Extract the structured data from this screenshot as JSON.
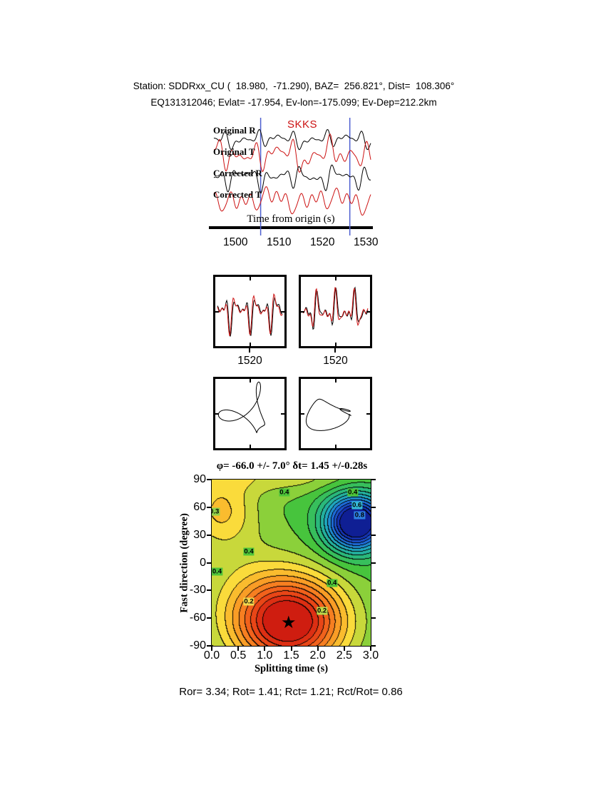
{
  "colors": {
    "black_trace": "#000000",
    "red_trace": "#cc1111",
    "window_line": "#4d5fd0",
    "phase_label": "#cc1111"
  },
  "header": {
    "line1": "Station: SDDRxx_CU (  18.980,  -71.290), BAZ=  256.821°, Dist=  108.306°",
    "line2": "EQ131312046; Evlat= -17.954, Ev-lon=-175.099; Ev-Dep=212.2km"
  },
  "results_line": "Ror= 3.34; Rot= 1.41; Rct= 1.21; Rct/Rot= 0.86",
  "chart_data": [
    {
      "id": "seismograms",
      "type": "line",
      "title": "SKKS",
      "xlabel": "Time from origin (s)",
      "x_range": [
        1493.9,
        1531.6
      ],
      "x_ticks": [
        1500,
        1510,
        1520,
        1530
      ],
      "window_s": [
        1505.8,
        1526.3
      ],
      "traces": [
        {
          "label": "Original R",
          "color": "black",
          "baseline": 30,
          "amp": 7,
          "components": [
            [
              4.6,
              0.45,
              0.8
            ],
            [
              9.2,
              0.75,
              3.9
            ],
            [
              13.8,
              0.6,
              1.7
            ],
            [
              18.4,
              0.4,
              5.2
            ],
            [
              2.3,
              0.35,
              2.6
            ]
          ]
        },
        {
          "label": "Original T",
          "color": "red",
          "baseline": 52,
          "amp": 11,
          "components": [
            [
              4.1,
              0.55,
              2.2
            ],
            [
              8.3,
              0.8,
              0.5
            ],
            [
              12.9,
              0.7,
              4.8
            ],
            [
              17.2,
              0.45,
              2.9
            ],
            [
              2.7,
              0.5,
              1.1
            ]
          ]
        },
        {
          "label": "Corrected R",
          "color": "black",
          "baseline": 83,
          "amp": 9,
          "components": [
            [
              5.1,
              0.5,
              1.5
            ],
            [
              9.7,
              0.8,
              5.5
            ],
            [
              14.4,
              0.6,
              2.8
            ],
            [
              19.1,
              0.35,
              0.3
            ],
            [
              3.2,
              0.4,
              4.2
            ]
          ]
        },
        {
          "label": "Corrected T",
          "color": "red",
          "baseline": 115,
          "amp": 10,
          "components": [
            [
              4.4,
              0.5,
              3.6
            ],
            [
              8.9,
              0.75,
              1.9
            ],
            [
              13.4,
              0.65,
              5.9
            ],
            [
              17.8,
              0.4,
              0.9
            ],
            [
              2.5,
              0.45,
              2.4
            ]
          ]
        }
      ]
    },
    {
      "id": "components_overlay",
      "type": "line",
      "boxes": [
        {
          "tick_label": "1520",
          "amp": 14,
          "components": [
            [
              3.3,
              0.65,
              0.7
            ],
            [
              6.4,
              0.9,
              2.9
            ],
            [
              9.6,
              0.6,
              5.3
            ],
            [
              12.7,
              0.4,
              1.6
            ]
          ],
          "traces": [
            {
              "color": "black",
              "phase": 0
            },
            {
              "color": "red",
              "phase": 0.55
            }
          ]
        },
        {
          "tick_label": "1520",
          "amp": 14,
          "components": [
            [
              3.7,
              0.7,
              2.1
            ],
            [
              6.9,
              0.85,
              4.6
            ],
            [
              10.2,
              0.55,
              0.4
            ],
            [
              13.5,
              0.35,
              3.2
            ]
          ],
          "traces": [
            {
              "color": "black",
              "phase": 0
            },
            {
              "color": "red",
              "phase": 0.5
            }
          ]
        }
      ]
    },
    {
      "id": "particle_motion",
      "type": "scatter",
      "boxes": [
        {
          "sx": 27,
          "sy": 28,
          "x_components": [
            [
              1,
              0.9,
              0.3
            ],
            [
              2,
              0.45,
              2.1
            ],
            [
              3,
              0.3,
              4.4
            ]
          ],
          "y_components": [
            [
              1,
              0.85,
              1.9
            ],
            [
              2,
              0.5,
              0.2
            ],
            [
              3,
              0.35,
              3.1
            ]
          ]
        },
        {
          "sx": 26,
          "sy": 22,
          "x_components": [
            [
              1,
              1.0,
              1.2
            ],
            [
              2,
              0.55,
              3.6
            ],
            [
              4,
              0.2,
              0.9
            ]
          ],
          "y_components": [
            [
              1,
              0.55,
              2.8
            ],
            [
              2,
              0.4,
              5.2
            ],
            [
              3,
              0.3,
              1.5
            ]
          ]
        }
      ]
    },
    {
      "id": "misfit_surface",
      "type": "heatmap",
      "title": "φ= -66.0 +/- 7.0° δt= 1.45 +/-0.28s",
      "xlabel": "Splitting time (s)",
      "ylabel": "Fast direction (degree)",
      "xlim": [
        0,
        3
      ],
      "ylim": [
        -90,
        90
      ],
      "x_ticks": [
        "0.0",
        "0.5",
        "1.0",
        "1.5",
        "2.0",
        "2.5",
        "3.0"
      ],
      "x_tick_values": [
        0,
        0.5,
        1,
        1.5,
        2,
        2.5,
        3
      ],
      "y_ticks": [
        "90",
        "60",
        "30",
        "0",
        "-30",
        "-60",
        "-90"
      ],
      "y_tick_values": [
        90,
        60,
        30,
        0,
        -30,
        -60,
        -90
      ],
      "best_fit": {
        "phi_deg": -66.0,
        "phi_err_deg": 7.0,
        "dt_s": 1.45,
        "dt_err_s": 0.28
      },
      "star": {
        "x": 1.45,
        "y": -66,
        "glyph": "★"
      },
      "contour_interval": 0.05,
      "field": {
        "base": 0.52,
        "gaussians": [
          {
            "amp": -0.56,
            "x0": 1.45,
            "sx": 0.72,
            "y0": -64,
            "sy": 34
          },
          {
            "amp": 0.58,
            "x0": 2.72,
            "sx": 0.4,
            "y0": 44,
            "sy": 21
          },
          {
            "amp": -0.16,
            "x0": 0.15,
            "sx": 0.45,
            "y0": 58,
            "sy": 26
          },
          {
            "amp": -0.06,
            "x0": 0.5,
            "sx": 0.8,
            "y0": -10,
            "sy": 50
          },
          {
            "amp": -0.1,
            "x0": 1.2,
            "sx": 1.2,
            "y0": 96,
            "sy": 14
          }
        ]
      },
      "colormap": [
        [
          0.0,
          [
            200,
            20,
            15
          ]
        ],
        [
          0.1,
          [
            228,
            56,
            20
          ]
        ],
        [
          0.2,
          [
            246,
            112,
            30
          ]
        ],
        [
          0.3,
          [
            250,
            172,
            40
          ]
        ],
        [
          0.38,
          [
            250,
            222,
            60
          ]
        ],
        [
          0.46,
          [
            162,
            212,
            58
          ]
        ],
        [
          0.52,
          [
            72,
            196,
            58
          ]
        ],
        [
          0.62,
          [
            42,
            186,
            120
          ]
        ],
        [
          0.72,
          [
            32,
            172,
            190
          ]
        ],
        [
          0.82,
          [
            30,
            112,
            222
          ]
        ],
        [
          0.92,
          [
            22,
            52,
            182
          ]
        ],
        [
          1.0,
          [
            12,
            22,
            132
          ]
        ]
      ],
      "contour_labels": [
        {
          "text": "0.4",
          "x": 1.37,
          "y": 76,
          "bg": "#4ec439"
        },
        {
          "text": "0.4",
          "x": 2.66,
          "y": 76,
          "bg": "#4ec439"
        },
        {
          "text": "0.6",
          "x": 2.74,
          "y": 62,
          "bg": "#35b9d6"
        },
        {
          "text": "0.8",
          "x": 2.79,
          "y": 51,
          "bg": "#2e7fe0"
        },
        {
          "text": "0.3",
          "x": 0.05,
          "y": 55,
          "bg": "#8fd04a"
        },
        {
          "text": "0.4",
          "x": 0.7,
          "y": 12,
          "bg": "#4ec439"
        },
        {
          "text": "0.4",
          "x": 0.1,
          "y": -10,
          "bg": "#4ec439"
        },
        {
          "text": "0.4",
          "x": 2.27,
          "y": -22,
          "bg": "#4ec439"
        },
        {
          "text": "0.2",
          "x": 0.7,
          "y": -42,
          "bg": "#f2d84e"
        },
        {
          "text": "0.2",
          "x": 2.08,
          "y": -52,
          "bg": "#bcd84a"
        }
      ]
    }
  ]
}
